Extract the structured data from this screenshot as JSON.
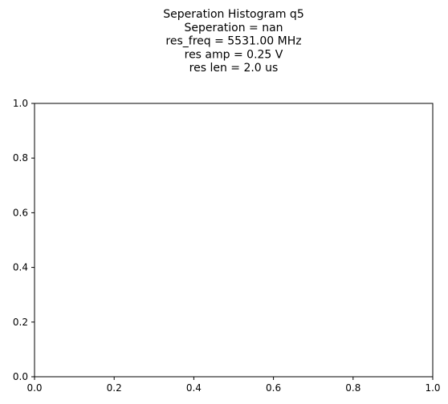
{
  "chart_data": {
    "type": "bar",
    "title_lines": [
      "Seperation Histogram q5",
      "Seperation = nan",
      "res_freq = 5531.00 MHz",
      "res amp = 0.25 V",
      "res len = 2.0 us"
    ],
    "xlabel": "",
    "ylabel": "",
    "xlim": [
      0,
      1
    ],
    "ylim": [
      0,
      1
    ],
    "x_ticks": [
      "0.0",
      "0.2",
      "0.4",
      "0.6",
      "0.8",
      "1.0"
    ],
    "y_ticks": [
      "0.0",
      "0.2",
      "0.4",
      "0.6",
      "0.8",
      "1.0"
    ],
    "series": [],
    "grid": false,
    "legend": "none"
  }
}
